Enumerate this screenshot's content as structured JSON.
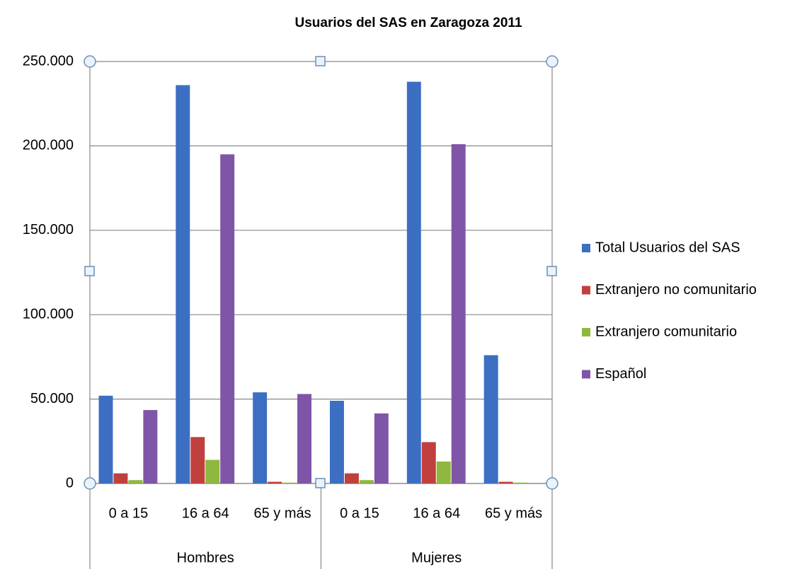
{
  "chart_data": {
    "type": "bar",
    "title": "Usuarios del SAS en Zaragoza  2011",
    "categories": [
      "0 a 15",
      "16 a 64",
      "65 y más",
      "0 a 15",
      "16 a 64",
      "65 y más"
    ],
    "category_groups": [
      "Hombres",
      "Mujeres"
    ],
    "series": [
      {
        "name": "Total Usuarios  del SAS",
        "color": "#3c6fc2",
        "values": [
          52000,
          236000,
          54000,
          49000,
          238000,
          76000
        ]
      },
      {
        "name": "Extranjero no comunitario",
        "color": "#c0403d",
        "values": [
          6000,
          27500,
          1000,
          6000,
          24500,
          1000
        ]
      },
      {
        "name": "Extranjero comunitario",
        "color": "#8fb83e",
        "values": [
          2000,
          14000,
          500,
          2000,
          13000,
          500
        ]
      },
      {
        "name": "Español",
        "color": "#7f55a8",
        "values": [
          43500,
          195000,
          53000,
          41500,
          201000,
          null
        ]
      }
    ],
    "ylim": [
      0,
      250000
    ],
    "yticks": [
      0,
      {
        "value": 50000,
        "label": "50.000"
      },
      {
        "value": 100000,
        "label": "100.000"
      },
      {
        "value": 150000,
        "label": "150.000"
      },
      {
        "value": 200000,
        "label": "200.000"
      },
      {
        "value": 250000,
        "label": "250.000"
      }
    ],
    "grid": true,
    "legend": "right"
  }
}
